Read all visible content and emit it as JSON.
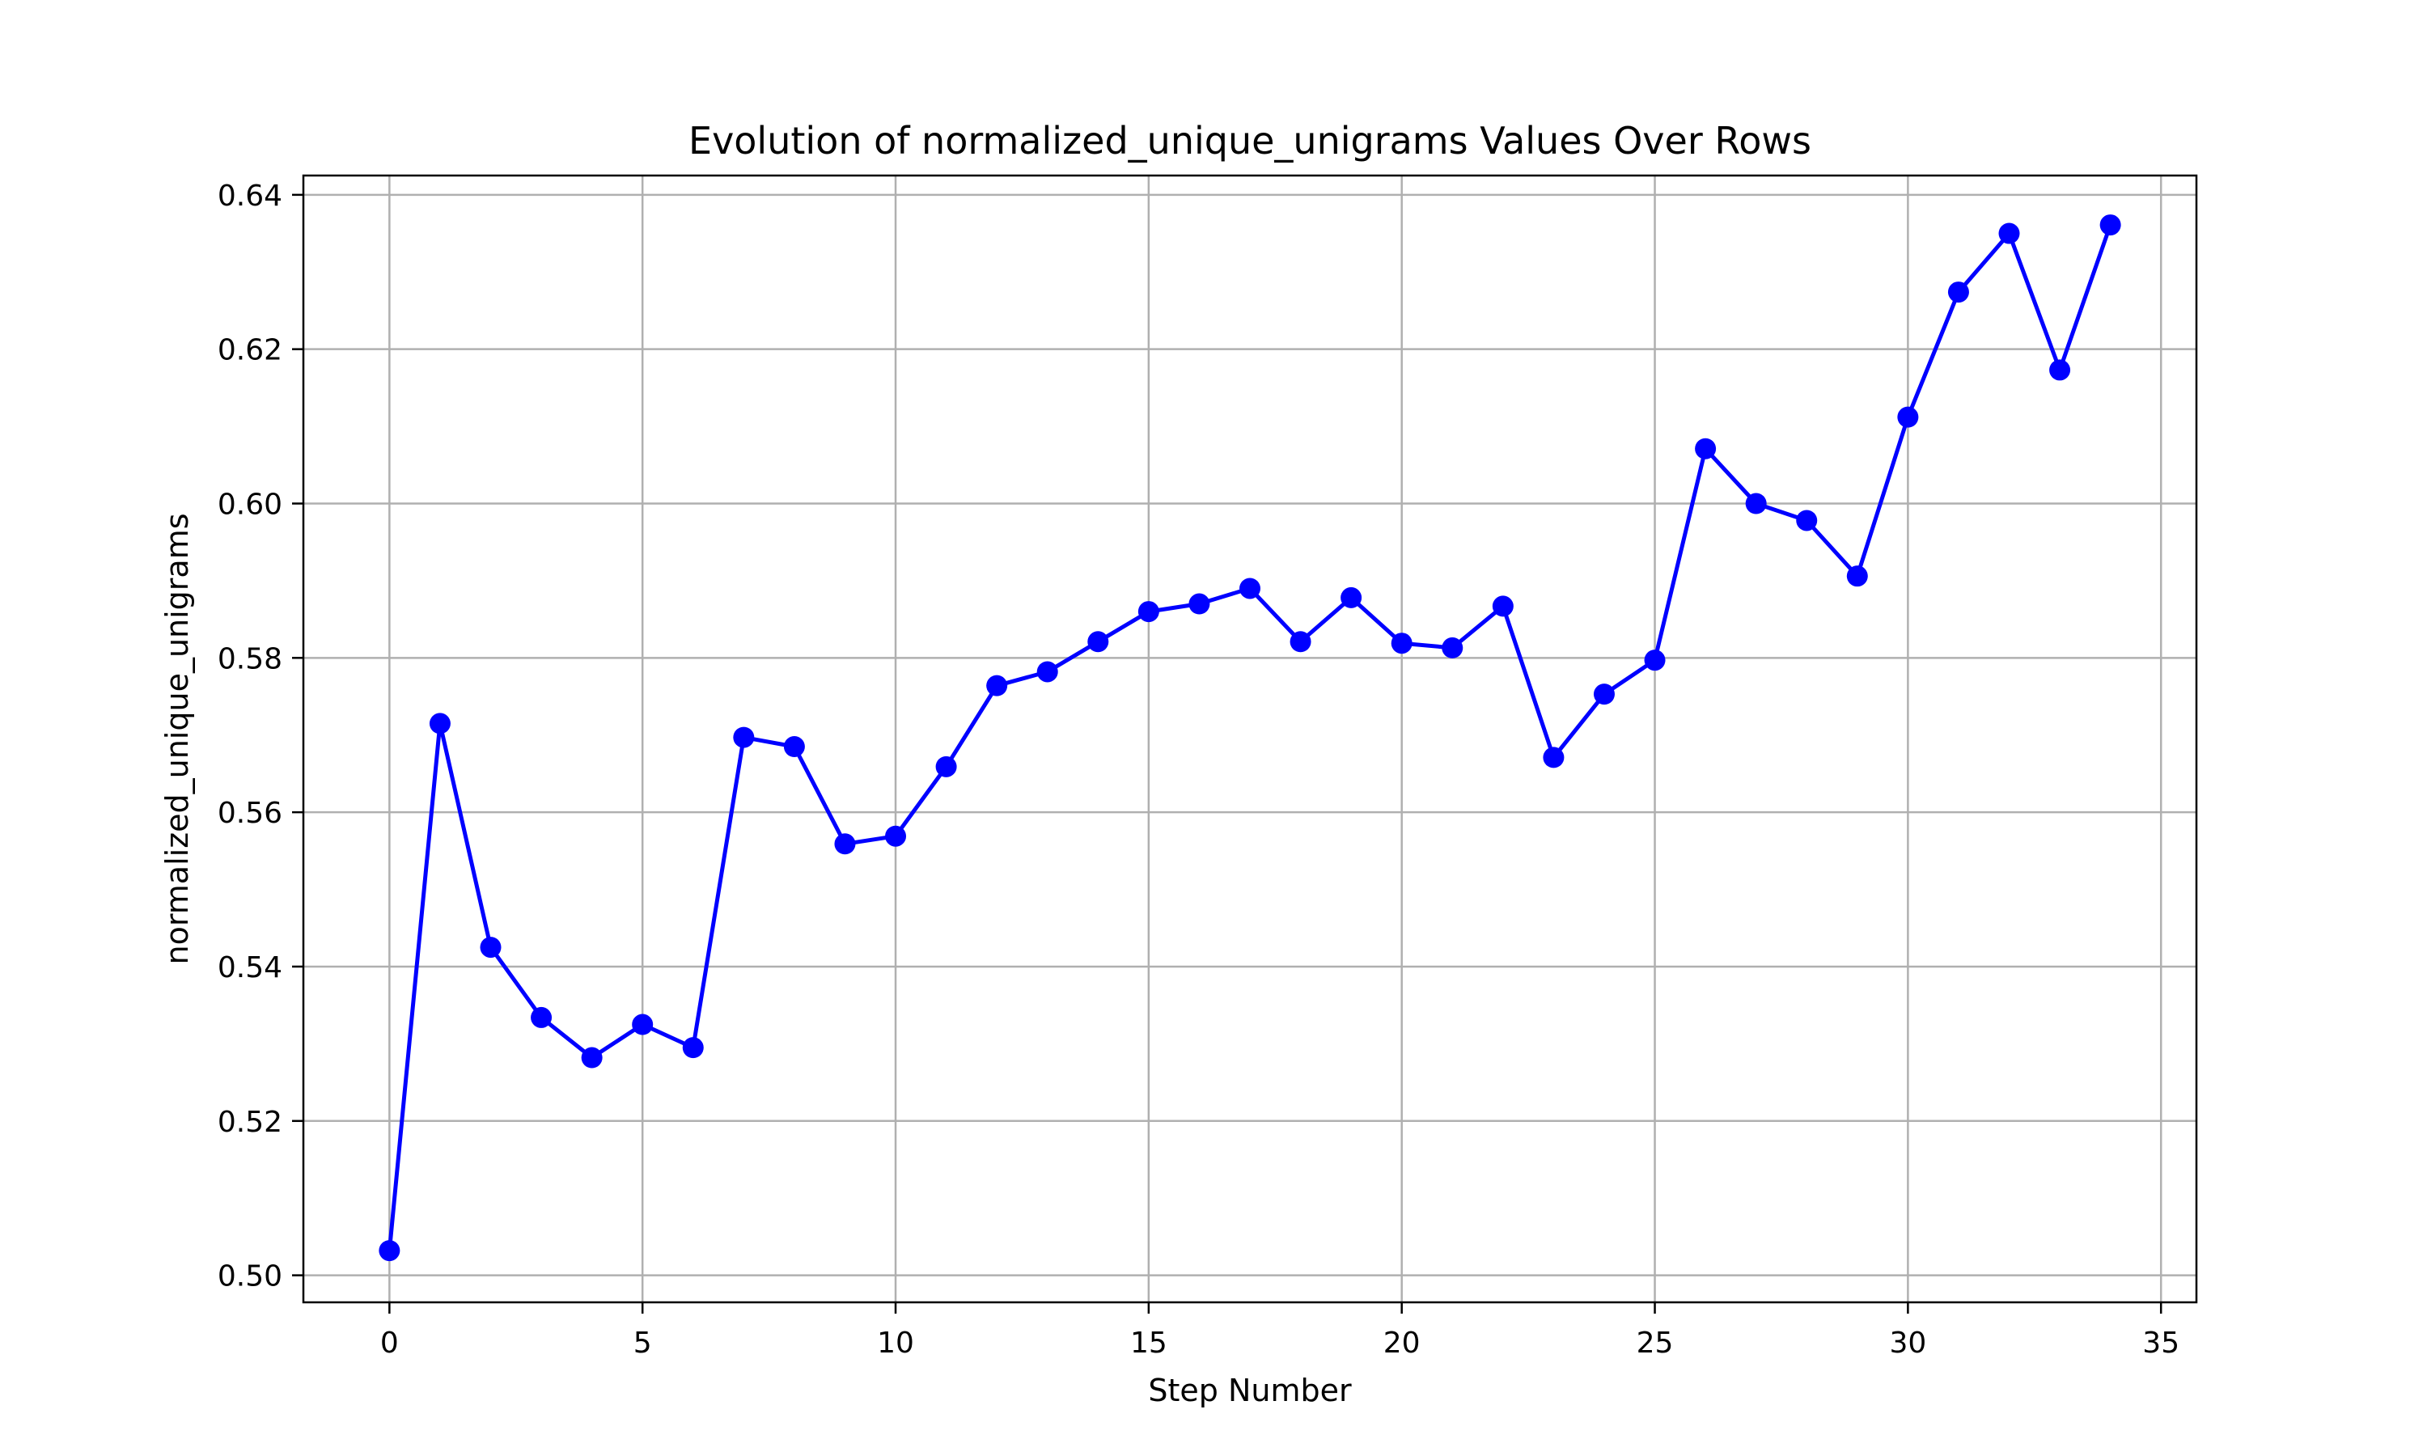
{
  "chart_data": {
    "type": "line",
    "title": "Evolution of normalized_unique_unigrams Values Over Rows",
    "xlabel": "Step Number",
    "ylabel": "normalized_unique_unigrams",
    "xlim": [
      -1.7,
      35.7
    ],
    "ylim": [
      0.4965,
      0.6425
    ],
    "xticks": [
      0,
      5,
      10,
      15,
      20,
      25,
      30,
      35
    ],
    "xtick_labels": [
      "0",
      "5",
      "10",
      "15",
      "20",
      "25",
      "30",
      "35"
    ],
    "yticks": [
      0.5,
      0.52,
      0.54,
      0.56,
      0.58,
      0.6,
      0.62,
      0.64
    ],
    "ytick_labels": [
      "0.50",
      "0.52",
      "0.54",
      "0.56",
      "0.58",
      "0.60",
      "0.62",
      "0.64"
    ],
    "grid": true,
    "legend": "none",
    "series": [
      {
        "color": "#0000ff",
        "marker": "circle",
        "x": [
          0,
          1,
          2,
          3,
          4,
          5,
          6,
          7,
          8,
          9,
          10,
          11,
          12,
          13,
          14,
          15,
          16,
          17,
          18,
          19,
          20,
          21,
          22,
          23,
          24,
          25,
          26,
          27,
          28,
          29,
          30,
          31,
          32,
          33,
          34
        ],
        "y": [
          0.5032,
          0.5715,
          0.5425,
          0.5334,
          0.5282,
          0.5325,
          0.5295,
          0.5697,
          0.5685,
          0.5559,
          0.5569,
          0.5659,
          0.5764,
          0.5782,
          0.5821,
          0.586,
          0.587,
          0.589,
          0.5821,
          0.5878,
          0.5819,
          0.5813,
          0.5867,
          0.5671,
          0.5753,
          0.5797,
          0.6071,
          0.6,
          0.5978,
          0.5906,
          0.6112,
          0.6274,
          0.635,
          0.6173,
          0.6361
        ]
      }
    ]
  }
}
